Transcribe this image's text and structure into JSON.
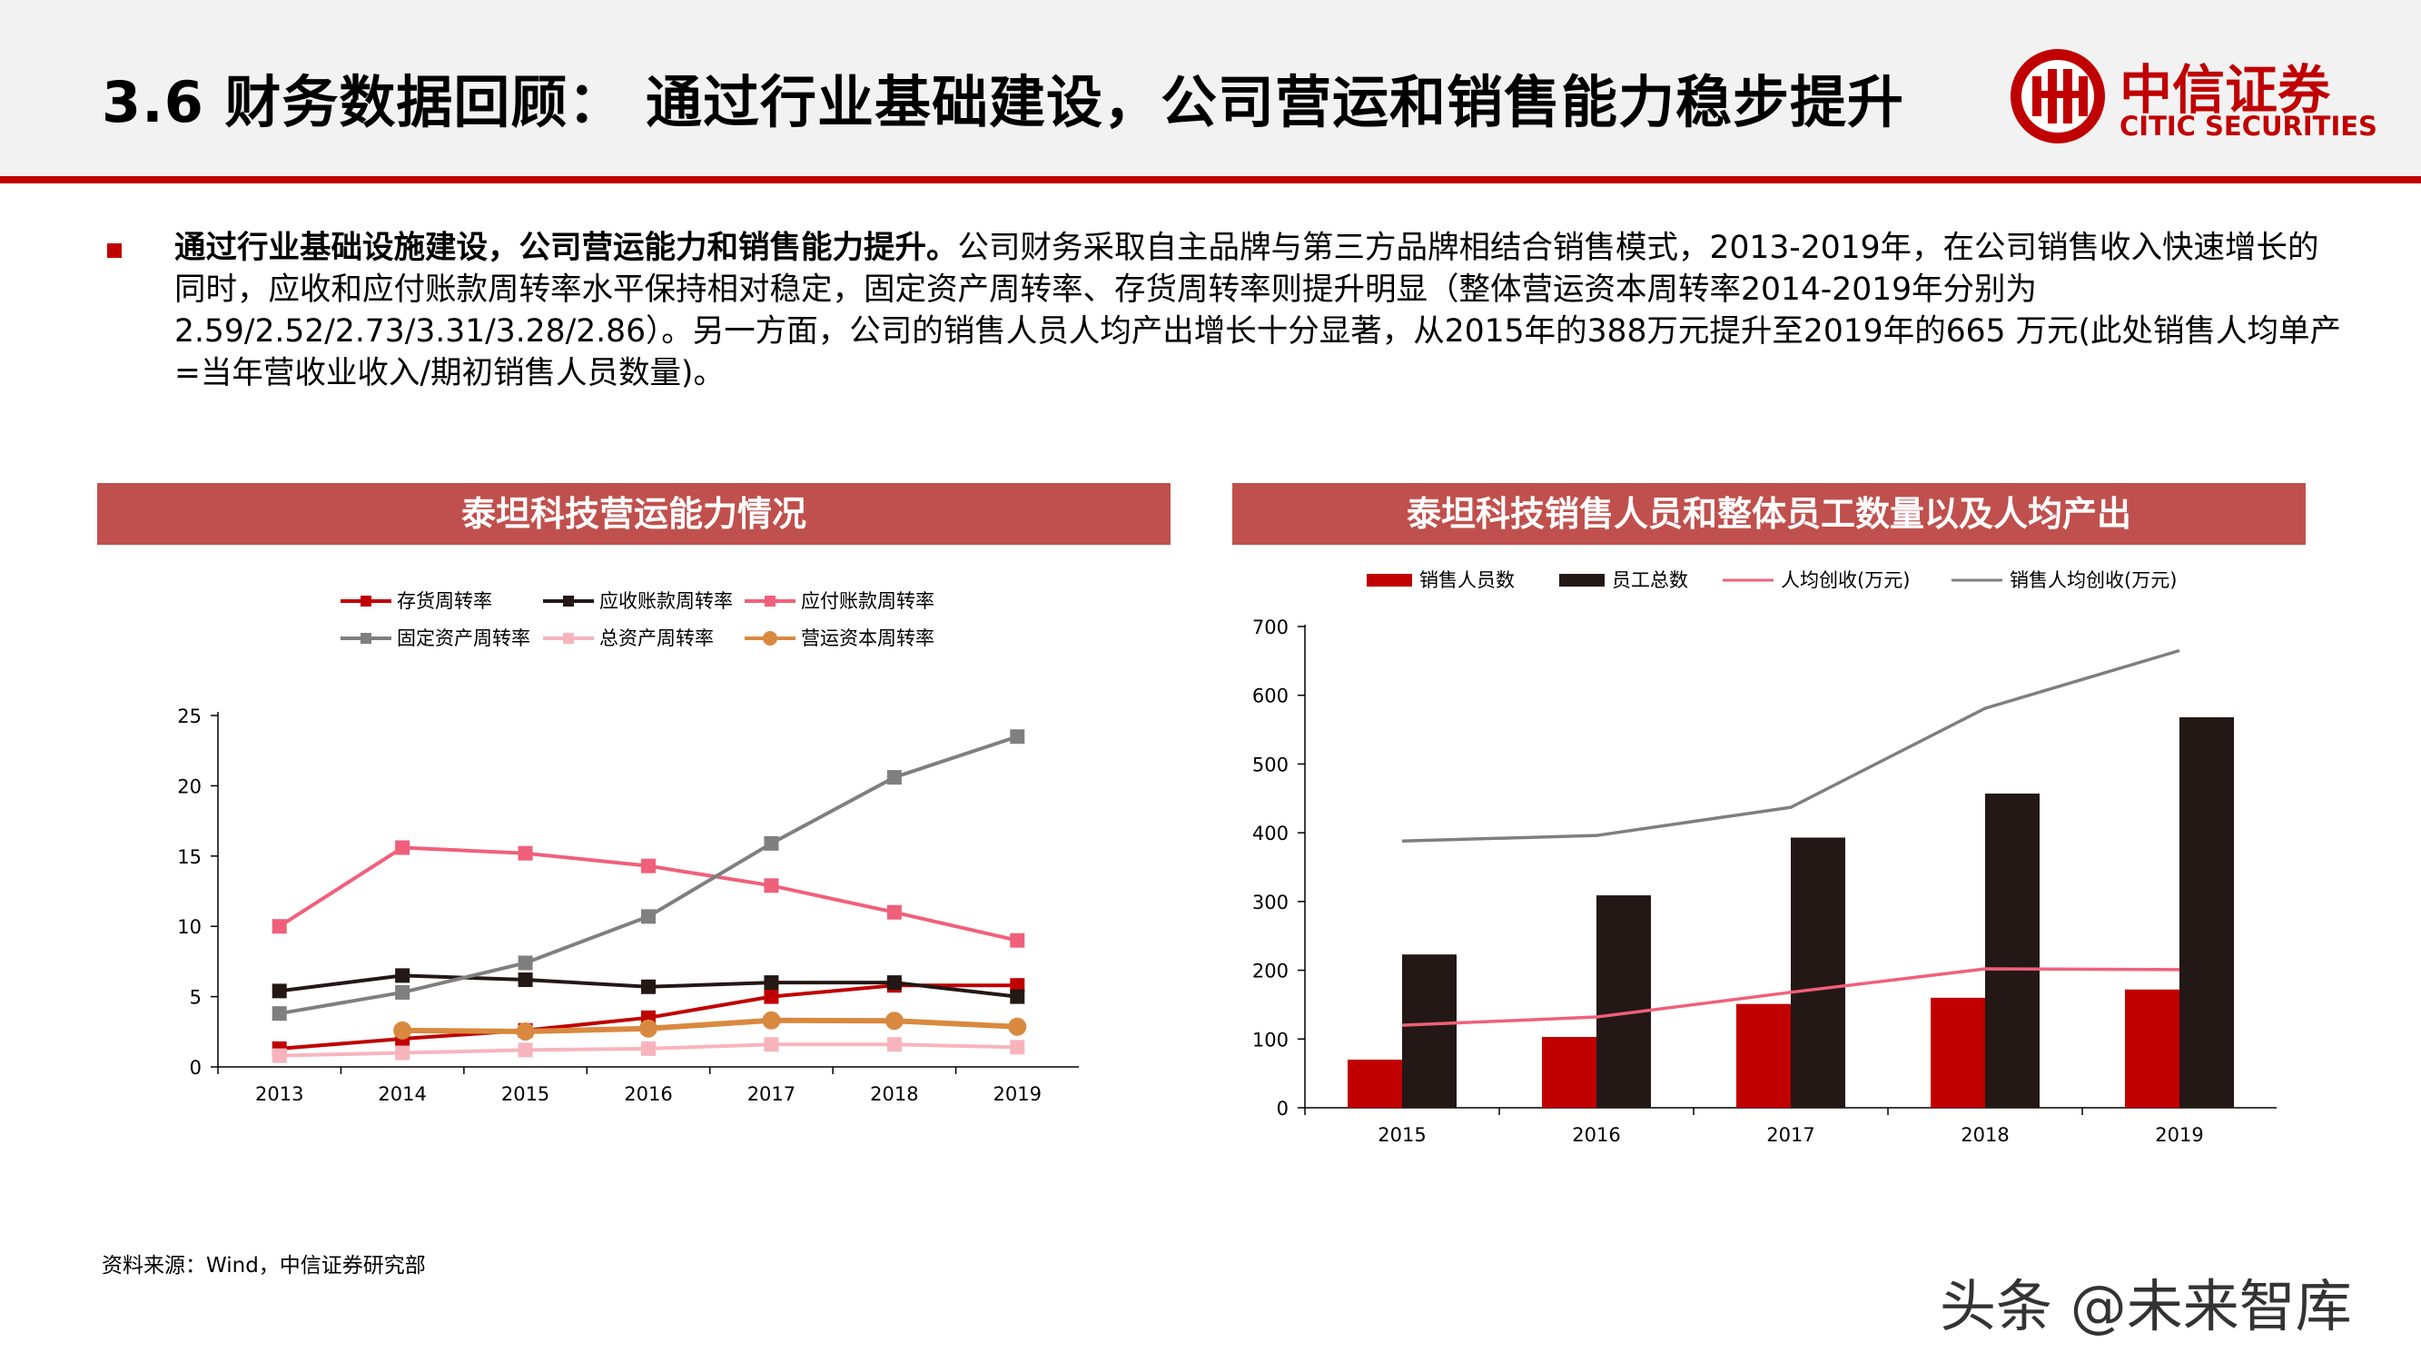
{
  "header": {
    "title": "3.6 财务数据回顾： 通过行业基础建设，公司营运和销售能力稳步提升",
    "logo_cn": "中信证券",
    "logo_en": "CITIC SECURITIES"
  },
  "bullet": {
    "bold": "通过行业基础设施建设，公司营运能力和销售能力提升。",
    "text": "公司财务采取自主品牌与第三方品牌相结合销售模式，2013-2019年，在公司销售收入快速增长的同时，应收和应付账款周转率水平保持相对稳定，固定资产周转率、存货周转率则提升明显（整体营运资本周转率2014-2019年分别为2.59/2.52/2.73/3.31/3.28/2.86）。另一方面，公司的销售人员人均产出增长十分显著，从2015年的388万元提升至2019年的665 万元(此处销售人均单产=当年营收业收入/期初销售人员数量)。"
  },
  "left_panel": {
    "title": "泰坦科技营运能力情况"
  },
  "right_panel": {
    "title": "泰坦科技销售人员和整体员工数量以及人均产出"
  },
  "source": "资料来源：Wind，中信证券研究部",
  "watermark": "头条 @未来智库",
  "colors": {
    "accent": "#c00000",
    "panel": "#c0504d",
    "dark_bar": "#231815",
    "gray_line": "#7f7f7f",
    "pink_line": "#f0607a",
    "orange_line": "#d9893f",
    "light_pink": "#f8b4bd"
  },
  "chart_data": [
    {
      "type": "line",
      "categories": [
        "2013",
        "2014",
        "2015",
        "2016",
        "2017",
        "2018",
        "2019"
      ],
      "ylim": [
        0,
        25
      ],
      "yticks": [
        0,
        5,
        10,
        15,
        20,
        25
      ],
      "legend_position": "top",
      "series": [
        {
          "name": "存货周转率",
          "color": "#c00000",
          "marker": "square",
          "values": [
            1.3,
            2.0,
            2.6,
            3.5,
            5.0,
            5.8,
            5.8
          ]
        },
        {
          "name": "应收账款周转率",
          "color": "#231815",
          "marker": "square",
          "values": [
            5.4,
            6.5,
            6.2,
            5.7,
            6.0,
            6.0,
            5.0
          ]
        },
        {
          "name": "应付账款周转率",
          "color": "#f0607a",
          "marker": "square",
          "values": [
            10.0,
            15.6,
            15.2,
            14.3,
            12.9,
            11.0,
            9.0
          ]
        },
        {
          "name": "固定资产周转率",
          "color": "#7f7f7f",
          "marker": "square",
          "values": [
            3.8,
            5.3,
            7.4,
            10.7,
            15.9,
            20.6,
            23.5
          ]
        },
        {
          "name": "总资产周转率",
          "color": "#f8b4bd",
          "marker": "square",
          "values": [
            0.8,
            1.0,
            1.2,
            1.3,
            1.6,
            1.6,
            1.4
          ]
        },
        {
          "name": "营运资本周转率",
          "color": "#d9893f",
          "marker": "circle",
          "values": [
            null,
            2.59,
            2.52,
            2.73,
            3.31,
            3.28,
            2.86
          ]
        }
      ]
    },
    {
      "type": "bar",
      "categories": [
        "2015",
        "2016",
        "2017",
        "2018",
        "2019"
      ],
      "ylim": [
        0,
        700
      ],
      "yticks": [
        0,
        100,
        200,
        300,
        400,
        500,
        600,
        700
      ],
      "legend_position": "top",
      "series": [
        {
          "name": "销售人员数",
          "kind": "bar",
          "color": "#c00000",
          "values": [
            70,
            103,
            151,
            160,
            172
          ]
        },
        {
          "name": "员工总数",
          "kind": "bar",
          "color": "#231815",
          "values": [
            223,
            309,
            393,
            457,
            568
          ]
        },
        {
          "name": "人均创收(万元)",
          "kind": "line",
          "color": "#f0607a",
          "values": [
            120,
            132,
            168,
            202,
            201
          ]
        },
        {
          "name": "销售人均创收(万元)",
          "kind": "line",
          "color": "#7f7f7f",
          "values": [
            388,
            396,
            437,
            581,
            665
          ]
        }
      ]
    }
  ]
}
